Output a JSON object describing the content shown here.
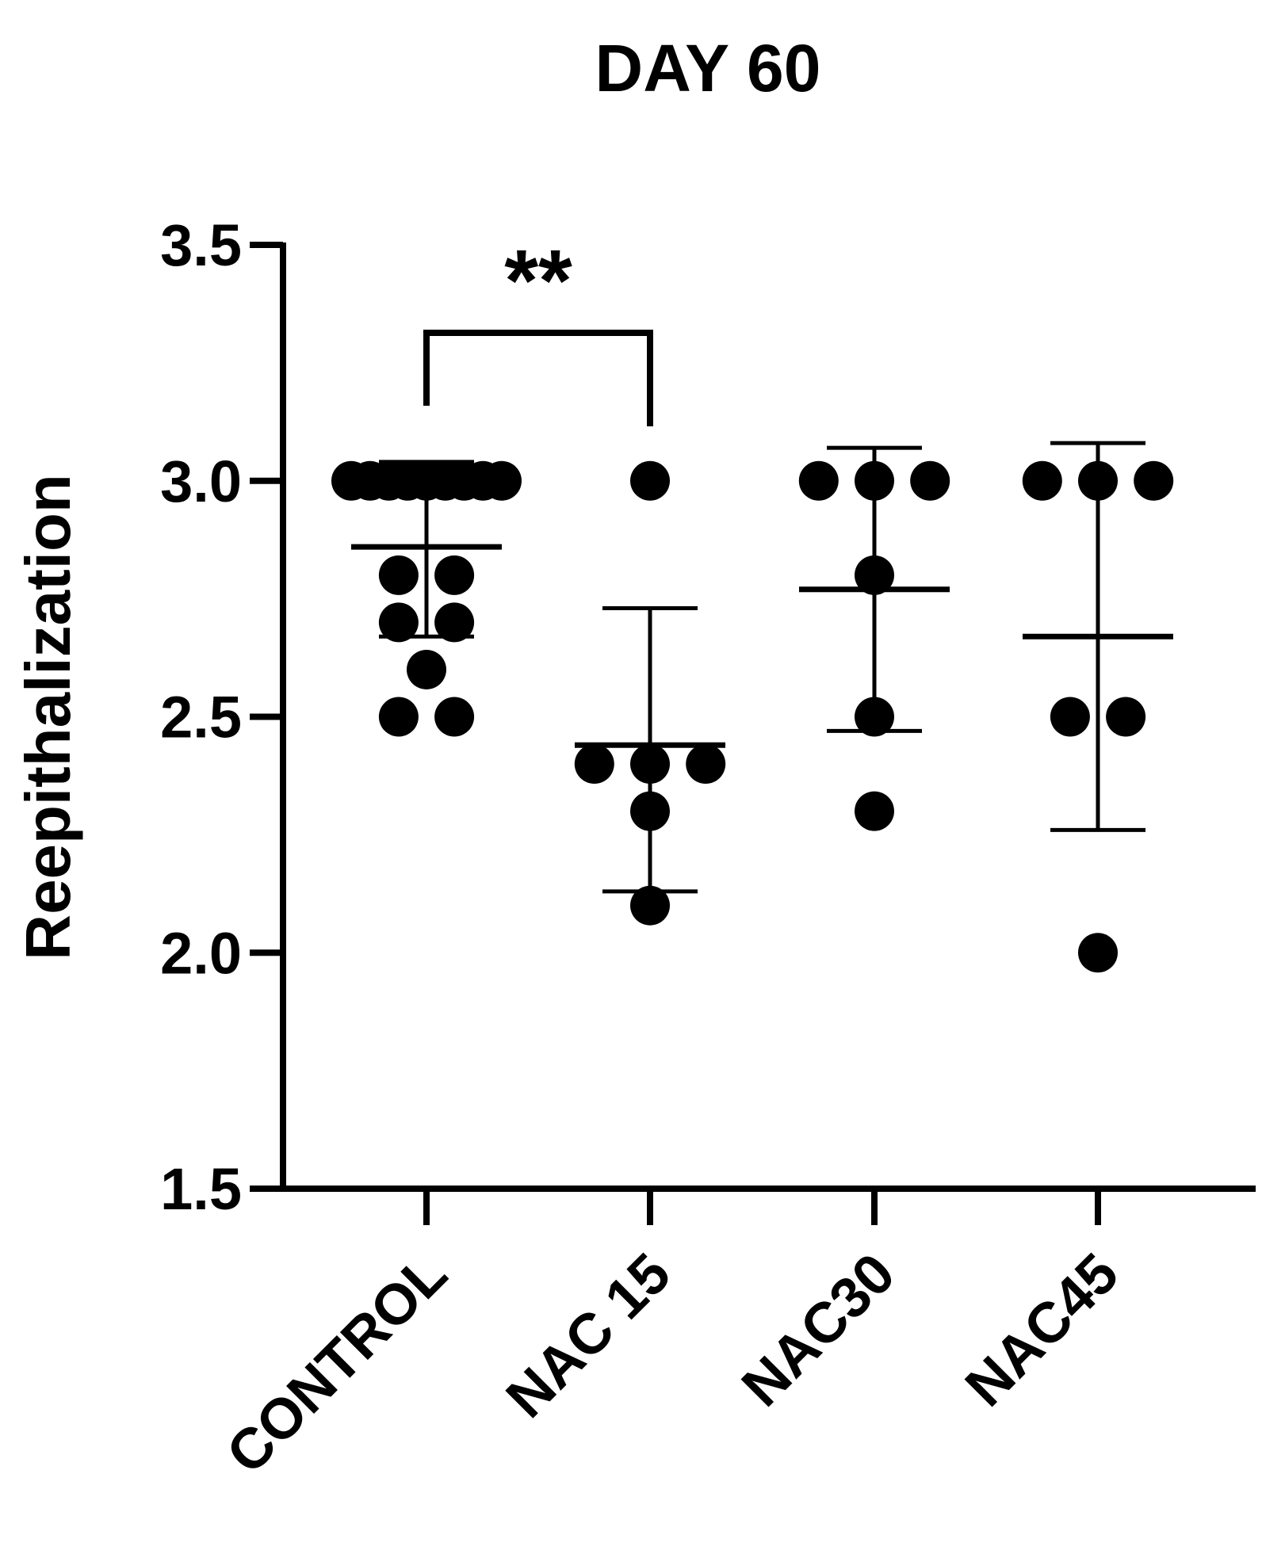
{
  "chart_data": {
    "type": "scatter",
    "title": "DAY 60",
    "xlabel": "",
    "ylabel": "Reepithalization",
    "ylim": [
      1.5,
      3.5
    ],
    "yticks": [
      1.5,
      2.0,
      2.5,
      3.0,
      3.5
    ],
    "ytick_labels": [
      "1.5",
      "2.0",
      "2.5",
      "3.0",
      "3.5"
    ],
    "grid": false,
    "legend": "none",
    "colors": {
      "points": "#000000",
      "axes": "#000000"
    },
    "categories": [
      "CONTROL",
      "NAC 15",
      "NAC30",
      "NAC45"
    ],
    "groups": [
      {
        "name": "CONTROL",
        "points": [
          3.0,
          3.0,
          3.0,
          3.0,
          3.0,
          3.0,
          3.0,
          3.0,
          3.0,
          2.8,
          2.8,
          2.7,
          2.7,
          2.6,
          2.5,
          2.5
        ],
        "mean": 2.86,
        "error_low": 2.67,
        "error_high": 3.04
      },
      {
        "name": "NAC 15",
        "points": [
          3.0,
          2.4,
          2.4,
          2.4,
          2.3,
          2.1
        ],
        "mean": 2.44,
        "error_low": 2.13,
        "error_high": 2.73
      },
      {
        "name": "NAC30",
        "points": [
          3.0,
          3.0,
          3.0,
          2.8,
          2.5,
          2.3
        ],
        "mean": 2.77,
        "error_low": 2.47,
        "error_high": 3.07
      },
      {
        "name": "NAC45",
        "points": [
          3.0,
          3.0,
          3.0,
          2.5,
          2.5,
          2.0
        ],
        "mean": 2.67,
        "error_low": 2.26,
        "error_high": 3.08
      }
    ],
    "annotations": [
      {
        "text": "**",
        "from": "CONTROL",
        "to": "NAC 15"
      }
    ]
  }
}
